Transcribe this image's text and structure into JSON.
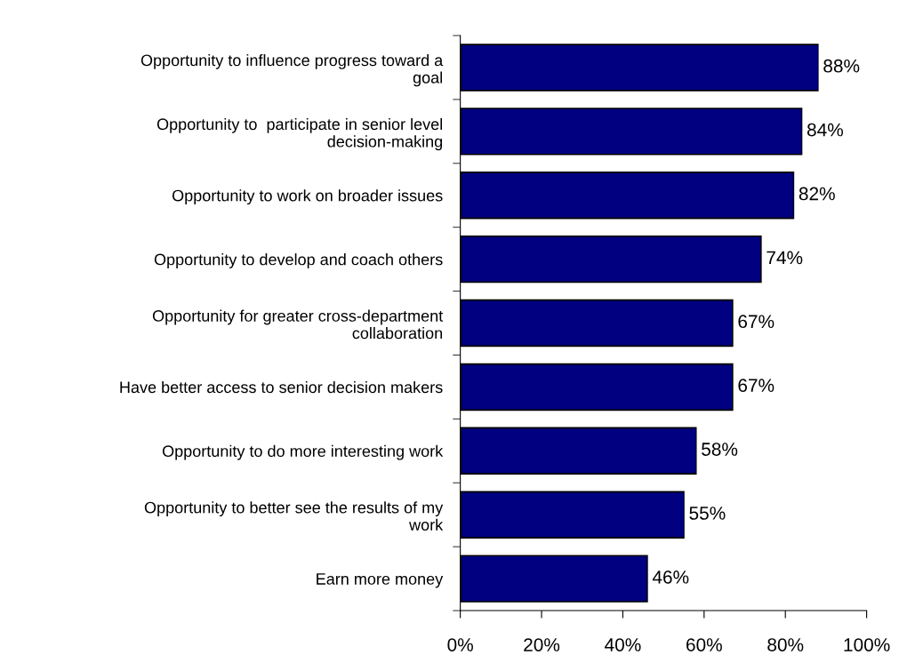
{
  "chart_data": {
    "type": "bar",
    "orientation": "horizontal",
    "categories": [
      "Opportunity to influence progress toward a\ngoal",
      "Opportunity to  participate in senior level\ndecision-making",
      "Opportunity to work on broader issues",
      "Opportunity to develop and coach others",
      "Opportunity for greater cross-department\ncollaboration",
      "Have better access to senior decision makers",
      "Opportunity to do more interesting work",
      "Opportunity to better see the results of my\nwork",
      "Earn more money"
    ],
    "values": [
      88,
      84,
      82,
      74,
      67,
      67,
      58,
      55,
      46
    ],
    "color": "#000080",
    "value_labels": [
      "88%",
      "84%",
      "82%",
      "74%",
      "67%",
      "67%",
      "58%",
      "55%",
      "46%"
    ],
    "xlim": [
      0,
      100
    ],
    "xticks": [
      {
        "value": 0,
        "label": "0%"
      },
      {
        "value": 20,
        "label": "20%"
      },
      {
        "value": 40,
        "label": "40%"
      },
      {
        "value": 60,
        "label": "60%"
      },
      {
        "value": 80,
        "label": "80%"
      },
      {
        "value": 100,
        "label": "100%"
      }
    ],
    "grid": false,
    "legend": false
  }
}
